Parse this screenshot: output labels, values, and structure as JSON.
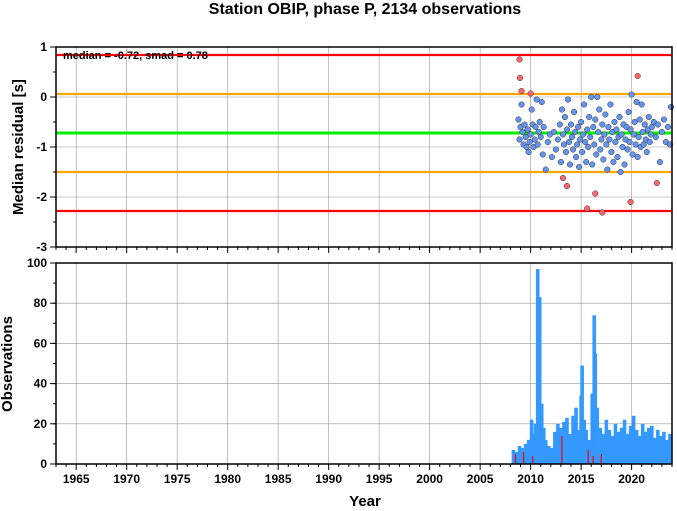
{
  "chart_data": [
    {
      "panel": "residuals",
      "type": "scatter",
      "title": "Station OBIP, phase P, 2134 observations",
      "ylabel": "Median residual [s]",
      "ylim": [
        -3,
        1
      ],
      "xlim": [
        1963,
        2024
      ],
      "yticks": [
        "1",
        "0",
        "-1",
        "-2",
        "-3"
      ],
      "grid": true,
      "annotation": "median = -0.72, smad = 0.78",
      "reference_lines": [
        {
          "name": "upper_red",
          "y": 0.84,
          "color": "#ff0000"
        },
        {
          "name": "upper_orange",
          "y": 0.06,
          "color": "#ffa500"
        },
        {
          "name": "median",
          "y": -0.72,
          "color": "#00ee00"
        },
        {
          "name": "lower_orange",
          "y": -1.5,
          "color": "#ffa500"
        },
        {
          "name": "lower_red",
          "y": -2.28,
          "color": "#ff0000"
        }
      ],
      "series": [
        {
          "color": "#6495ed",
          "points": [
            [
              2008.8,
              -0.45
            ],
            [
              2008.9,
              -0.85
            ],
            [
              2009.0,
              -0.6
            ],
            [
              2009.1,
              -0.15
            ],
            [
              2009.2,
              -0.7
            ],
            [
              2009.3,
              -0.95
            ],
            [
              2009.4,
              -0.55
            ],
            [
              2009.5,
              -0.8
            ],
            [
              2009.6,
              -1.0
            ],
            [
              2009.7,
              -0.65
            ],
            [
              2009.8,
              -1.1
            ],
            [
              2009.9,
              -0.9
            ],
            [
              2010.0,
              -0.75
            ],
            [
              2010.1,
              -0.25
            ],
            [
              2010.2,
              -0.55
            ],
            [
              2010.3,
              -1.0
            ],
            [
              2010.4,
              -0.85
            ],
            [
              2010.5,
              -0.6
            ],
            [
              2010.6,
              -0.05
            ],
            [
              2010.7,
              -0.95
            ],
            [
              2010.8,
              -0.7
            ],
            [
              2010.9,
              -0.5
            ],
            [
              2011.0,
              -0.8
            ],
            [
              2011.1,
              -0.1
            ],
            [
              2011.2,
              -1.15
            ],
            [
              2011.3,
              -0.6
            ],
            [
              2011.5,
              -1.45
            ],
            [
              2011.7,
              -0.9
            ],
            [
              2011.9,
              -0.75
            ],
            [
              2012.1,
              -1.2
            ],
            [
              2012.3,
              -0.7
            ],
            [
              2012.5,
              -1.05
            ],
            [
              2012.7,
              -0.85
            ],
            [
              2012.9,
              -0.55
            ],
            [
              2013.0,
              -1.3
            ],
            [
              2013.1,
              -0.25
            ],
            [
              2013.2,
              -0.75
            ],
            [
              2013.3,
              -0.95
            ],
            [
              2013.4,
              -0.4
            ],
            [
              2013.5,
              -1.1
            ],
            [
              2013.6,
              -0.65
            ],
            [
              2013.7,
              -0.05
            ],
            [
              2013.8,
              -0.9
            ],
            [
              2013.9,
              -1.35
            ],
            [
              2014.0,
              -0.55
            ],
            [
              2014.1,
              -0.8
            ],
            [
              2014.2,
              -1.05
            ],
            [
              2014.3,
              -0.3
            ],
            [
              2014.4,
              -0.7
            ],
            [
              2014.5,
              -1.2
            ],
            [
              2014.6,
              -0.95
            ],
            [
              2014.7,
              -0.6
            ],
            [
              2014.8,
              -1.4
            ],
            [
              2014.9,
              -0.85
            ],
            [
              2015.0,
              -0.5
            ],
            [
              2015.1,
              -1.1
            ],
            [
              2015.2,
              -0.75
            ],
            [
              2015.3,
              -0.15
            ],
            [
              2015.4,
              -0.9
            ],
            [
              2015.5,
              -1.3
            ],
            [
              2015.6,
              -0.65
            ],
            [
              2015.7,
              -1.0
            ],
            [
              2015.8,
              -0.4
            ],
            [
              2015.9,
              -0.8
            ],
            [
              2016.0,
              0.0
            ],
            [
              2016.1,
              -1.35
            ],
            [
              2016.2,
              -0.6
            ],
            [
              2016.3,
              -0.95
            ],
            [
              2016.4,
              -0.45
            ],
            [
              2016.5,
              -1.15
            ],
            [
              2016.6,
              0.0
            ],
            [
              2016.7,
              -0.7
            ],
            [
              2016.8,
              -0.25
            ],
            [
              2016.9,
              -1.05
            ],
            [
              2017.0,
              -0.85
            ],
            [
              2017.1,
              -0.55
            ],
            [
              2017.2,
              -1.25
            ],
            [
              2017.3,
              -0.75
            ],
            [
              2017.4,
              -0.35
            ],
            [
              2017.5,
              -0.95
            ],
            [
              2017.6,
              -1.45
            ],
            [
              2017.7,
              -0.6
            ],
            [
              2017.8,
              -0.85
            ],
            [
              2017.9,
              -0.15
            ],
            [
              2018.0,
              -1.1
            ],
            [
              2018.1,
              -0.7
            ],
            [
              2018.2,
              -1.3
            ],
            [
              2018.3,
              -0.5
            ],
            [
              2018.4,
              -0.9
            ],
            [
              2018.5,
              -0.65
            ],
            [
              2018.6,
              -1.2
            ],
            [
              2018.7,
              -0.8
            ],
            [
              2018.8,
              -0.4
            ],
            [
              2018.9,
              -1.5
            ],
            [
              2019.0,
              -0.75
            ],
            [
              2019.1,
              -1.0
            ],
            [
              2019.2,
              -0.55
            ],
            [
              2019.3,
              -1.35
            ],
            [
              2019.4,
              -0.85
            ],
            [
              2019.5,
              -0.6
            ],
            [
              2019.6,
              -1.05
            ],
            [
              2019.7,
              -0.3
            ],
            [
              2019.8,
              -0.9
            ],
            [
              2019.9,
              -0.65
            ],
            [
              2020.0,
              0.05
            ],
            [
              2020.1,
              -1.15
            ],
            [
              2020.2,
              -0.75
            ],
            [
              2020.3,
              -0.5
            ],
            [
              2020.4,
              -0.95
            ],
            [
              2020.5,
              -0.1
            ],
            [
              2020.6,
              -1.2
            ],
            [
              2020.7,
              -0.8
            ],
            [
              2020.8,
              -0.45
            ],
            [
              2020.9,
              -1.0
            ],
            [
              2021.0,
              -0.15
            ],
            [
              2021.1,
              -0.7
            ],
            [
              2021.2,
              -0.95
            ],
            [
              2021.3,
              -0.55
            ],
            [
              2021.4,
              -0.85
            ],
            [
              2021.5,
              -1.1
            ],
            [
              2021.6,
              -0.65
            ],
            [
              2021.7,
              -0.4
            ],
            [
              2021.8,
              -0.9
            ],
            [
              2021.9,
              -0.75
            ],
            [
              2022.0,
              -0.6
            ],
            [
              2022.2,
              -0.5
            ],
            [
              2022.4,
              -0.8
            ],
            [
              2022.6,
              -0.55
            ],
            [
              2022.8,
              -1.3
            ],
            [
              2023.0,
              -0.7
            ],
            [
              2023.2,
              -0.45
            ],
            [
              2023.4,
              -0.9
            ],
            [
              2023.6,
              -0.6
            ],
            [
              2023.8,
              -0.95
            ],
            [
              2023.9,
              -0.2
            ]
          ]
        },
        {
          "color": "#ff6666",
          "points": [
            [
              2008.9,
              0.75
            ],
            [
              2008.95,
              0.38
            ],
            [
              2009.1,
              0.12
            ],
            [
              2010.0,
              0.07
            ],
            [
              2013.2,
              -1.62
            ],
            [
              2013.6,
              -1.78
            ],
            [
              2015.6,
              -2.23
            ],
            [
              2016.4,
              -1.93
            ],
            [
              2017.1,
              -2.31
            ],
            [
              2019.9,
              -2.1
            ],
            [
              2020.6,
              0.42
            ],
            [
              2022.5,
              -1.72
            ]
          ]
        }
      ]
    },
    {
      "panel": "observations",
      "type": "bar",
      "xlabel": "Year",
      "ylabel": "Observations",
      "ylim": [
        0,
        100
      ],
      "xlim": [
        1963,
        2024
      ],
      "yticks": [
        "100",
        "80",
        "60",
        "40",
        "20",
        "0"
      ],
      "xticks": [
        "1965",
        "1970",
        "1975",
        "1980",
        "1985",
        "1990",
        "1995",
        "2000",
        "2005",
        "2010",
        "2015",
        "2020"
      ],
      "grid": true,
      "series": [
        {
          "color": "#3399ff",
          "x": [
            2008.3,
            2008.6,
            2008.9,
            2009.2,
            2009.5,
            2009.8,
            2010.1,
            2010.3,
            2010.5,
            2010.7,
            2010.9,
            2011.1,
            2011.3,
            2011.5,
            2011.8,
            2012.1,
            2012.4,
            2012.7,
            2013.0,
            2013.3,
            2013.6,
            2013.9,
            2014.2,
            2014.5,
            2014.8,
            2015.0,
            2015.1,
            2015.3,
            2015.5,
            2015.8,
            2016.1,
            2016.3,
            2016.4,
            2016.6,
            2016.9,
            2017.2,
            2017.5,
            2017.8,
            2018.1,
            2018.4,
            2018.7,
            2019.0,
            2019.3,
            2019.6,
            2019.9,
            2020.2,
            2020.5,
            2020.8,
            2021.1,
            2021.4,
            2021.7,
            2022.0,
            2022.3,
            2022.6,
            2022.9,
            2023.2,
            2023.5,
            2023.8
          ],
          "values": [
            7,
            6,
            9,
            8,
            10,
            12,
            22,
            15,
            20,
            97,
            83,
            30,
            18,
            12,
            9,
            8,
            16,
            20,
            18,
            21,
            23,
            15,
            24,
            28,
            17,
            34,
            49,
            22,
            17,
            12,
            35,
            74,
            55,
            28,
            18,
            15,
            22,
            17,
            14,
            20,
            16,
            18,
            22,
            15,
            19,
            24,
            17,
            14,
            20,
            16,
            18,
            19,
            13,
            17,
            14,
            16,
            12,
            15
          ]
        },
        {
          "color": "#ff0000",
          "x": [
            2008.5,
            2009.3,
            2010.2,
            2013.1,
            2015.7,
            2016.2,
            2017.0
          ],
          "values": [
            5,
            6,
            4,
            14,
            7,
            4,
            5
          ]
        }
      ]
    }
  ]
}
